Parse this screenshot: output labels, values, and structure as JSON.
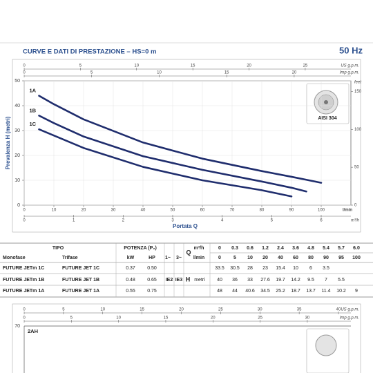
{
  "header": {
    "title": "CURVE E DATI DI PRESTAZIONE  –  HS=0 m",
    "frequency": "50 Hz"
  },
  "chart_data": {
    "type": "line",
    "ylabel": "Prevalenza H (metri)",
    "xlabel": "Portata Q",
    "x_unit": "l/min",
    "xlim": [
      0,
      110
    ],
    "xticks": [
      0,
      10,
      20,
      30,
      40,
      50,
      60,
      70,
      80,
      90,
      100
    ],
    "ylim": [
      0,
      50
    ],
    "yticks": [
      0,
      10,
      20,
      30,
      40,
      50
    ],
    "grid": true,
    "series": [
      {
        "name": "1A",
        "color": "#1f2d6d",
        "x": [
          5,
          10,
          20,
          40,
          60,
          80,
          90,
          95,
          100
        ],
        "values": [
          44,
          40.6,
          34.5,
          25.2,
          18.7,
          13.7,
          11.4,
          10.2,
          9
        ]
      },
      {
        "name": "1B",
        "color": "#1f2d6d",
        "x": [
          5,
          10,
          20,
          40,
          60,
          80,
          90,
          95
        ],
        "values": [
          36,
          33,
          27.6,
          19.7,
          14.2,
          9.5,
          7,
          5.5
        ]
      },
      {
        "name": "1C",
        "color": "#1f2d6d",
        "x": [
          5,
          10,
          20,
          40,
          60,
          80,
          90
        ],
        "values": [
          30.5,
          28,
          23,
          15.4,
          10,
          6,
          3.5
        ]
      }
    ],
    "top_axis": {
      "label": "US g.p.m.",
      "lim": [
        0,
        29.06
      ],
      "ticks": [
        0,
        5,
        10,
        15,
        20,
        25
      ]
    },
    "second_top_axis": {
      "label": "Imp g.p.m.",
      "lim": [
        0,
        24.2
      ],
      "ticks": [
        0,
        5,
        10,
        15,
        20
      ]
    },
    "bottom_axis": {
      "label": "m³/h",
      "lim": [
        0,
        6.6
      ],
      "ticks": [
        0,
        1,
        2,
        3,
        4,
        5,
        6
      ]
    },
    "right_axis": {
      "label": "feet",
      "lim": [
        0,
        164
      ],
      "ticks": [
        0,
        50,
        100,
        150
      ]
    },
    "inset_label": "AISI 304"
  },
  "table": {
    "tipo": "TIPO",
    "monofase": "Monofase",
    "trifase": "Trifase",
    "potenza": "POTENZA (P₂)",
    "kw": "kW",
    "hp": "HP",
    "phase_1": "1~",
    "phase_3": "3~",
    "q": "Q",
    "m3h": "m³/h",
    "lmin": "l/min",
    "h": "H",
    "metri": "metri",
    "m3h_values": [
      "0",
      "0.3",
      "0.6",
      "1.2",
      "2.4",
      "3.6",
      "4.8",
      "5.4",
      "5.7",
      "6.0"
    ],
    "lmin_values": [
      "0",
      "5",
      "10",
      "20",
      "40",
      "60",
      "80",
      "90",
      "95",
      "100"
    ],
    "ie2": "IE2",
    "ie3": "IE3",
    "rows": [
      {
        "monofase": "FUTURE JETm 1C",
        "trifase": "FUTURE JET 1C",
        "kw": "0.37",
        "hp": "0.50",
        "h": [
          "33.5",
          "30.5",
          "28",
          "23",
          "15.4",
          "10",
          "6",
          "3.5"
        ]
      },
      {
        "monofase": "FUTURE JETm 1B",
        "trifase": "FUTURE JET 1B",
        "kw": "0.48",
        "hp": "0.65",
        "h": [
          "40",
          "36",
          "33",
          "27.6",
          "19.7",
          "14.2",
          "9.5",
          "7",
          "5.5"
        ]
      },
      {
        "monofase": "FUTURE JETm 1A",
        "trifase": "FUTURE JET 1A",
        "kw": "0.55",
        "hp": "0.75",
        "h": [
          "48",
          "44",
          "40.6",
          "34.5",
          "25.2",
          "18.7",
          "13.7",
          "11.4",
          "10.2",
          "9"
        ]
      }
    ]
  },
  "next_chart": {
    "top_label": "US g.p.m.",
    "top_lim": [
      0,
      40
    ],
    "top_ticks": [
      "0",
      "5",
      "10",
      "15",
      "20",
      "25",
      "30",
      "35",
      "40"
    ],
    "second_label": "Imp g.p.m.",
    "second_lim": [
      0,
      33.3
    ],
    "second_ticks": [
      "0",
      "5",
      "10",
      "15",
      "20",
      "25",
      "30"
    ],
    "y_top": "70",
    "curve_label": "2AH"
  }
}
